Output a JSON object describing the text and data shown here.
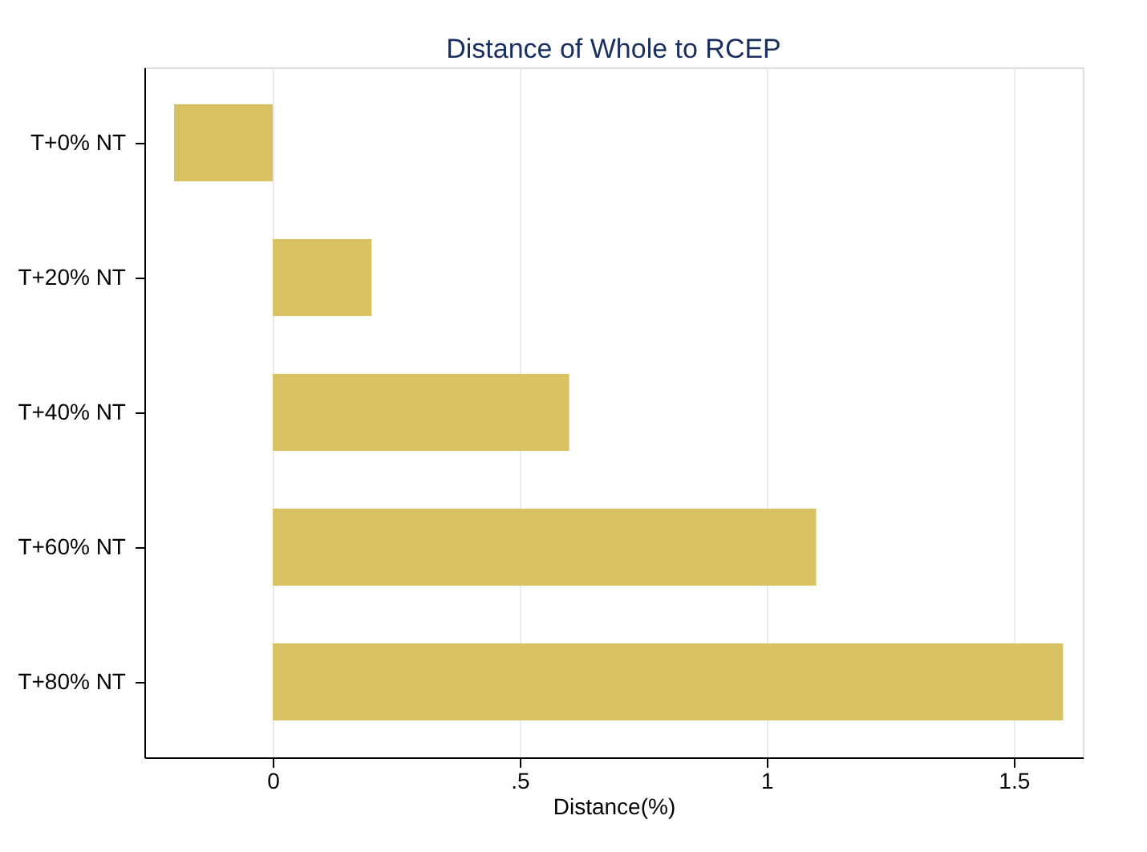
{
  "chart_data": {
    "type": "bar",
    "orientation": "horizontal",
    "title": "Distance of Whole to RCEP",
    "xlabel": "Distance(%)",
    "categories": [
      "T+0% NT",
      "T+20% NT",
      "T+40% NT",
      "T+60% NT",
      "T+80% NT"
    ],
    "values": [
      -0.2,
      0.2,
      0.6,
      1.1,
      1.6
    ],
    "color": "#d9c263",
    "xlim": [
      -0.26,
      1.64
    ],
    "xticks": [
      0,
      {
        "value": 0.5,
        "label": ".5"
      },
      1,
      1.5
    ],
    "grid": "x"
  }
}
